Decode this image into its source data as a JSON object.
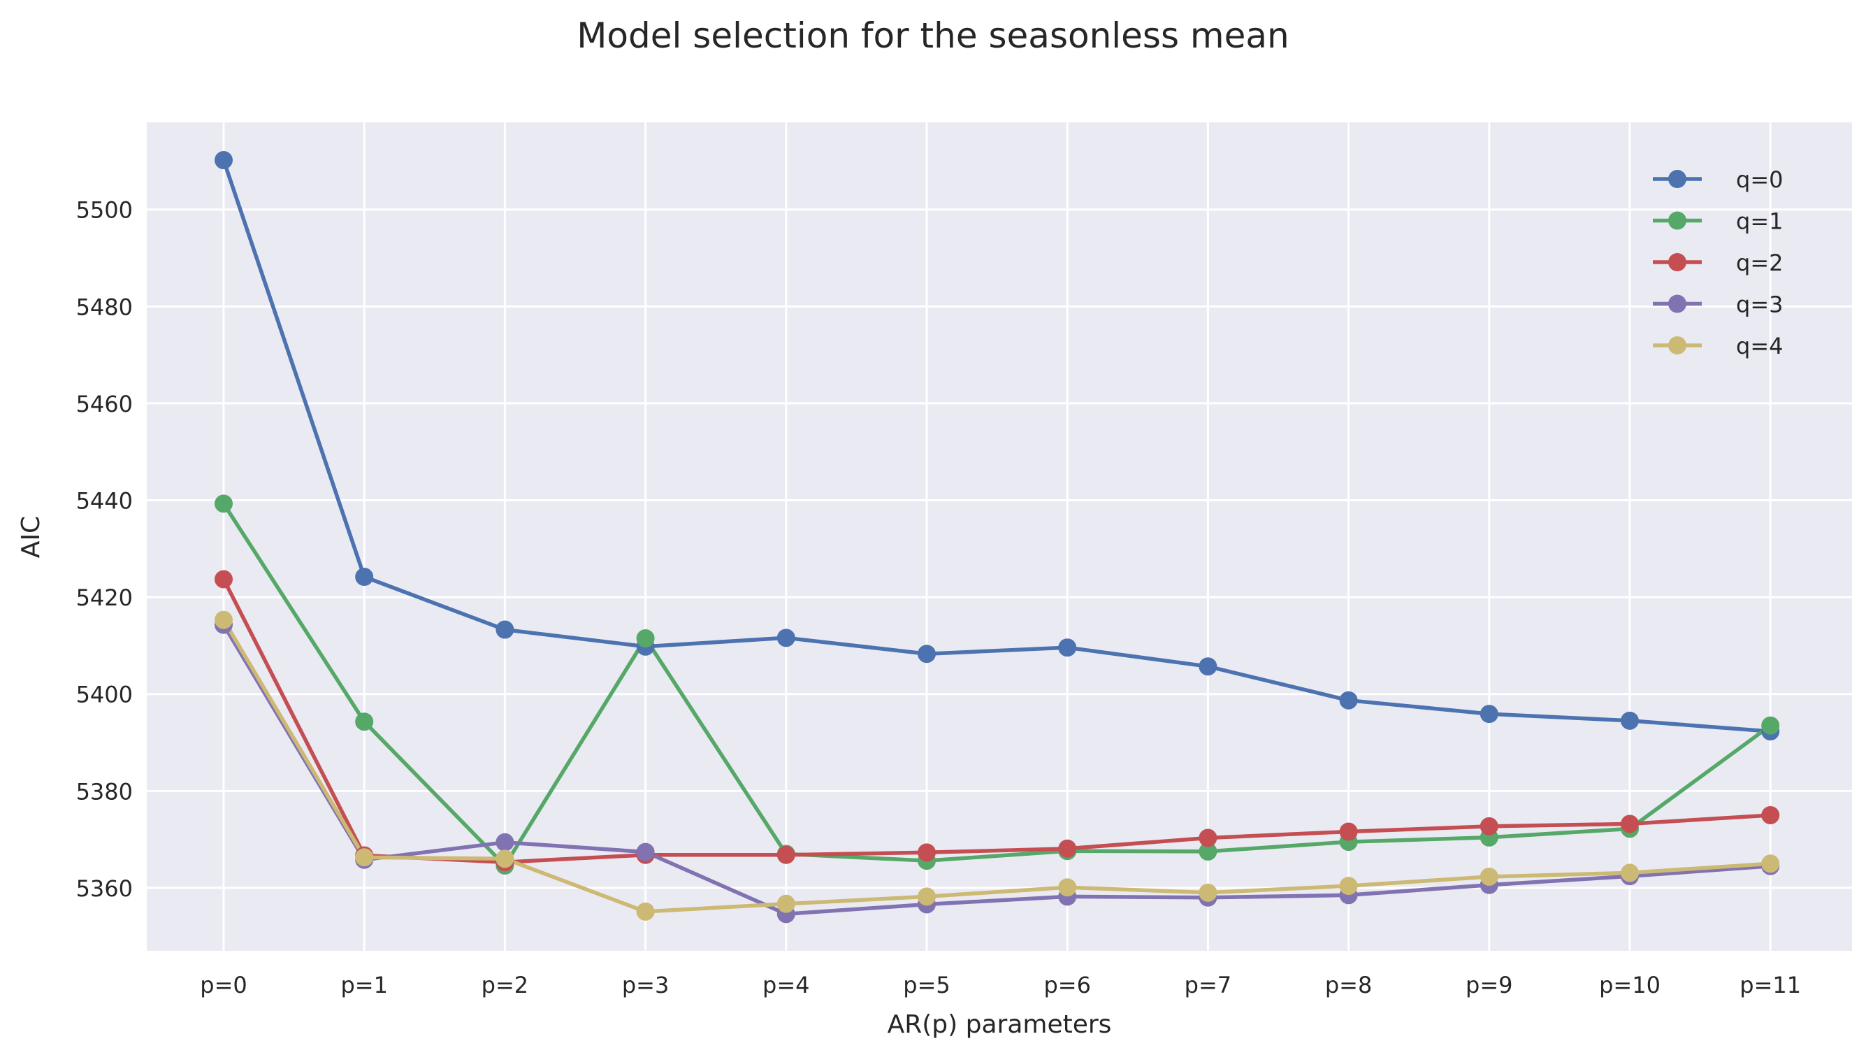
{
  "chart_data": {
    "type": "line",
    "title": "Model selection for the seasonless mean",
    "xlabel": "AR(p) parameters",
    "ylabel": "AIC",
    "categories": [
      "p=0",
      "p=1",
      "p=2",
      "p=3",
      "p=4",
      "p=5",
      "p=6",
      "p=7",
      "p=8",
      "p=9",
      "p=10",
      "p=11"
    ],
    "ylim": [
      5347,
      5518
    ],
    "yticks": [
      5360,
      5380,
      5400,
      5420,
      5440,
      5460,
      5480,
      5500
    ],
    "grid": true,
    "legend_position": "top-right",
    "series": [
      {
        "name": "q=0",
        "color": "#4c72b0",
        "values": [
          5510.2,
          5424.2,
          5413.3,
          5409.8,
          5411.6,
          5408.3,
          5409.6,
          5405.7,
          5398.7,
          5395.9,
          5394.5,
          5392.3
        ]
      },
      {
        "name": "q=1",
        "color": "#55a868",
        "values": [
          5439.3,
          5394.3,
          5364.6,
          5411.5,
          5367.0,
          5365.6,
          5367.6,
          5367.5,
          5369.5,
          5370.4,
          5372.2,
          5393.5
        ]
      },
      {
        "name": "q=2",
        "color": "#c44e52",
        "values": [
          5423.7,
          5366.7,
          5365.3,
          5366.8,
          5366.8,
          5367.3,
          5368.1,
          5370.3,
          5371.6,
          5372.7,
          5373.2,
          5375.0
        ]
      },
      {
        "name": "q=3",
        "color": "#8172b2",
        "values": [
          5414.3,
          5365.8,
          5369.4,
          5367.4,
          5354.6,
          5356.6,
          5358.2,
          5358.0,
          5358.5,
          5360.6,
          5362.4,
          5364.5
        ]
      },
      {
        "name": "q=4",
        "color": "#ccb974",
        "values": [
          5415.3,
          5366.3,
          5366.0,
          5355.1,
          5356.7,
          5358.2,
          5360.1,
          5359.0,
          5360.4,
          5362.3,
          5363.1,
          5365.0
        ]
      }
    ]
  }
}
